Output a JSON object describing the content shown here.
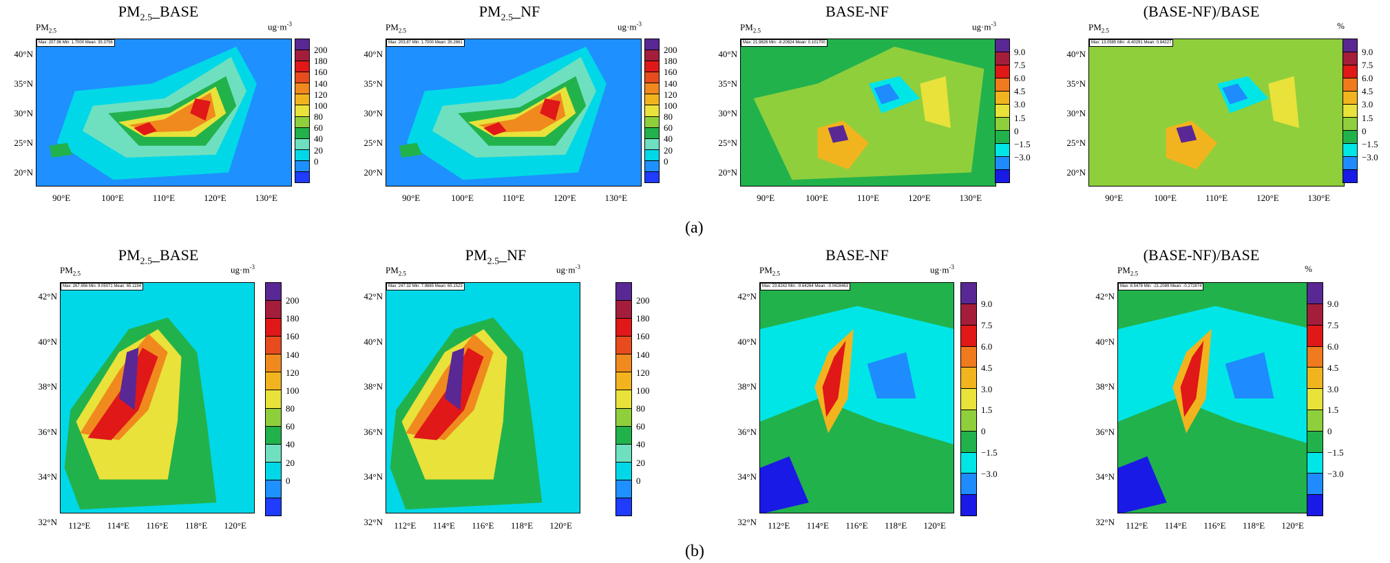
{
  "row_labels": [
    "(a)",
    "(b)"
  ],
  "palettes": {
    "concentration": [
      "#1f3cff",
      "#1e90ff",
      "#00d8e8",
      "#6ee0c0",
      "#22b24c",
      "#8fcf3c",
      "#e8e23a",
      "#f2b41e",
      "#f08a1e",
      "#e84c1e",
      "#e01818",
      "#a41e3c",
      "#5a2894"
    ],
    "difference": [
      "#1a1ae6",
      "#1e8cff",
      "#00e6e6",
      "#22b24c",
      "#8fcf3c",
      "#e8e23a",
      "#f2b41e",
      "#f07a1e",
      "#e01818",
      "#a41e3c",
      "#5a2894"
    ]
  },
  "panels": [
    {
      "id": "a1",
      "row": 0,
      "title": "PM",
      "title_sub": "2.5",
      "title_suffix": "_BASE",
      "var": "PM",
      "var_sub": "2.5",
      "unit": "ug·m",
      "unit_sup": "-3",
      "stat": "Max: 207.96  Min: 1.7000  Mean: 35.3756",
      "palette": "concentration",
      "bg": "#1e90ff",
      "yticks": [
        "40°N",
        "35°N",
        "30°N",
        "25°N",
        "20°N"
      ],
      "xticks": [
        "90°E",
        "100°E",
        "110°E",
        "120°E",
        "130°E"
      ],
      "cbar_ticks": [
        "200",
        "180",
        "160",
        "140",
        "120",
        "100",
        "80",
        "60",
        "40",
        "20",
        "0"
      ]
    },
    {
      "id": "a2",
      "row": 0,
      "title": "PM",
      "title_sub": "2.5",
      "title_suffix": "_NF",
      "var": "PM",
      "var_sub": "2.5",
      "unit": "ug·m",
      "unit_sup": "-3",
      "stat": "Max: 203.87  Min: 1.7000  Mean: 35.2661",
      "palette": "concentration",
      "bg": "#1e90ff",
      "yticks": [
        "40°N",
        "35°N",
        "30°N",
        "25°N",
        "20°N"
      ],
      "xticks": [
        "90°E",
        "100°E",
        "110°E",
        "120°E",
        "130°E"
      ],
      "cbar_ticks": [
        "200",
        "180",
        "160",
        "140",
        "120",
        "100",
        "80",
        "60",
        "40",
        "20",
        "0"
      ]
    },
    {
      "id": "a3",
      "row": 0,
      "title": "BASE-NF",
      "title_sub": "",
      "title_suffix": "",
      "var": "PM",
      "var_sub": "2.5",
      "unit": "ug·m",
      "unit_sup": "-3",
      "stat": "Max: 21.9826  Min: -8.20824  Mean: 0.101700",
      "palette": "difference",
      "bg": "#22b24c",
      "yticks": [
        "40°N",
        "35°N",
        "30°N",
        "25°N",
        "20°N"
      ],
      "xticks": [
        "90°E",
        "100°E",
        "110°E",
        "120°E",
        "130°E"
      ],
      "cbar_ticks": [
        "9.0",
        "7.5",
        "6.0",
        "4.5",
        "3.0",
        "1.5",
        "0",
        "−1.5",
        "−3.0"
      ]
    },
    {
      "id": "a4",
      "row": 0,
      "title": "(BASE-NF)/BASE",
      "title_sub": "",
      "title_suffix": "",
      "var": "PM",
      "var_sub": "2.5",
      "unit": "%",
      "unit_sup": "",
      "stat": "Max: 13.0585  Min: -6.40291  Mean: 0.84227",
      "palette": "difference",
      "bg": "#8fcf3c",
      "yticks": [
        "40°N",
        "35°N",
        "30°N",
        "25°N",
        "20°N"
      ],
      "xticks": [
        "90°E",
        "100°E",
        "110°E",
        "120°E",
        "130°E"
      ],
      "cbar_ticks": [
        "9.0",
        "7.5",
        "6.0",
        "4.5",
        "3.0",
        "1.5",
        "0",
        "−1.5",
        "−3.0"
      ]
    },
    {
      "id": "b1",
      "row": 1,
      "title": "PM",
      "title_sub": "2.5",
      "title_suffix": "_BASE",
      "var": "PM",
      "var_sub": "2.5",
      "unit": "ug·m",
      "unit_sup": "-3",
      "stat": "Max: 267.956  Min: 9.05071  Mean: 65.1194",
      "palette": "concentration",
      "bg": "#00d8e8",
      "yticks": [
        "42°N",
        "40°N",
        "38°N",
        "36°N",
        "34°N",
        "32°N"
      ],
      "xticks": [
        "112°E",
        "114°E",
        "116°E",
        "118°E",
        "120°E"
      ],
      "cbar_ticks": [
        "200",
        "180",
        "160",
        "140",
        "120",
        "100",
        "80",
        "60",
        "40",
        "20",
        "0"
      ]
    },
    {
      "id": "b2",
      "row": 1,
      "title": "PM",
      "title_sub": "2.5",
      "title_suffix": "_NF",
      "var": "PM",
      "var_sub": "2.5",
      "unit": "ug·m",
      "unit_sup": "-3",
      "stat": "Max: 247.32  Min: 7.9885  Mean: 65.1523",
      "palette": "concentration",
      "bg": "#00d8e8",
      "yticks": [
        "42°N",
        "40°N",
        "38°N",
        "36°N",
        "34°N",
        "32°N"
      ],
      "xticks": [
        "112°E",
        "114°E",
        "116°E",
        "118°E",
        "120°E"
      ],
      "cbar_ticks": [
        "200",
        "180",
        "160",
        "140",
        "120",
        "100",
        "80",
        "60",
        "40",
        "20",
        "0"
      ]
    },
    {
      "id": "b3",
      "row": 1,
      "title": "BASE-NF",
      "title_sub": "",
      "title_suffix": "",
      "var": "PM",
      "var_sub": "2.5",
      "unit": "ug·m",
      "unit_sup": "-3",
      "stat": "Max: 23.8242  Min: -9.64264  Mean: -0.0428463",
      "palette": "difference",
      "bg": "#22b24c",
      "yticks": [
        "42°N",
        "40°N",
        "38°N",
        "36°N",
        "34°N",
        "32°N"
      ],
      "xticks": [
        "112°E",
        "114°E",
        "116°E",
        "118°E",
        "120°E"
      ],
      "cbar_ticks": [
        "9.0",
        "7.5",
        "6.0",
        "4.5",
        "3.0",
        "1.5",
        "0",
        "−1.5",
        "−3.0"
      ]
    },
    {
      "id": "b4",
      "row": 1,
      "title": "(BASE-NF)/BASE",
      "title_sub": "",
      "title_suffix": "",
      "var": "PM",
      "var_sub": "2.5",
      "unit": "%",
      "unit_sup": "",
      "stat": "Max: 8.5478  Min: -21.2089  Mean: -0.272874",
      "palette": "difference",
      "bg": "#22b24c",
      "yticks": [
        "42°N",
        "40°N",
        "38°N",
        "36°N",
        "34°N",
        "32°N"
      ],
      "xticks": [
        "112°E",
        "114°E",
        "116°E",
        "118°E",
        "120°E"
      ],
      "cbar_ticks": [
        "9.0",
        "7.5",
        "6.0",
        "4.5",
        "3.0",
        "1.5",
        "0",
        "−1.5",
        "−3.0"
      ]
    }
  ]
}
